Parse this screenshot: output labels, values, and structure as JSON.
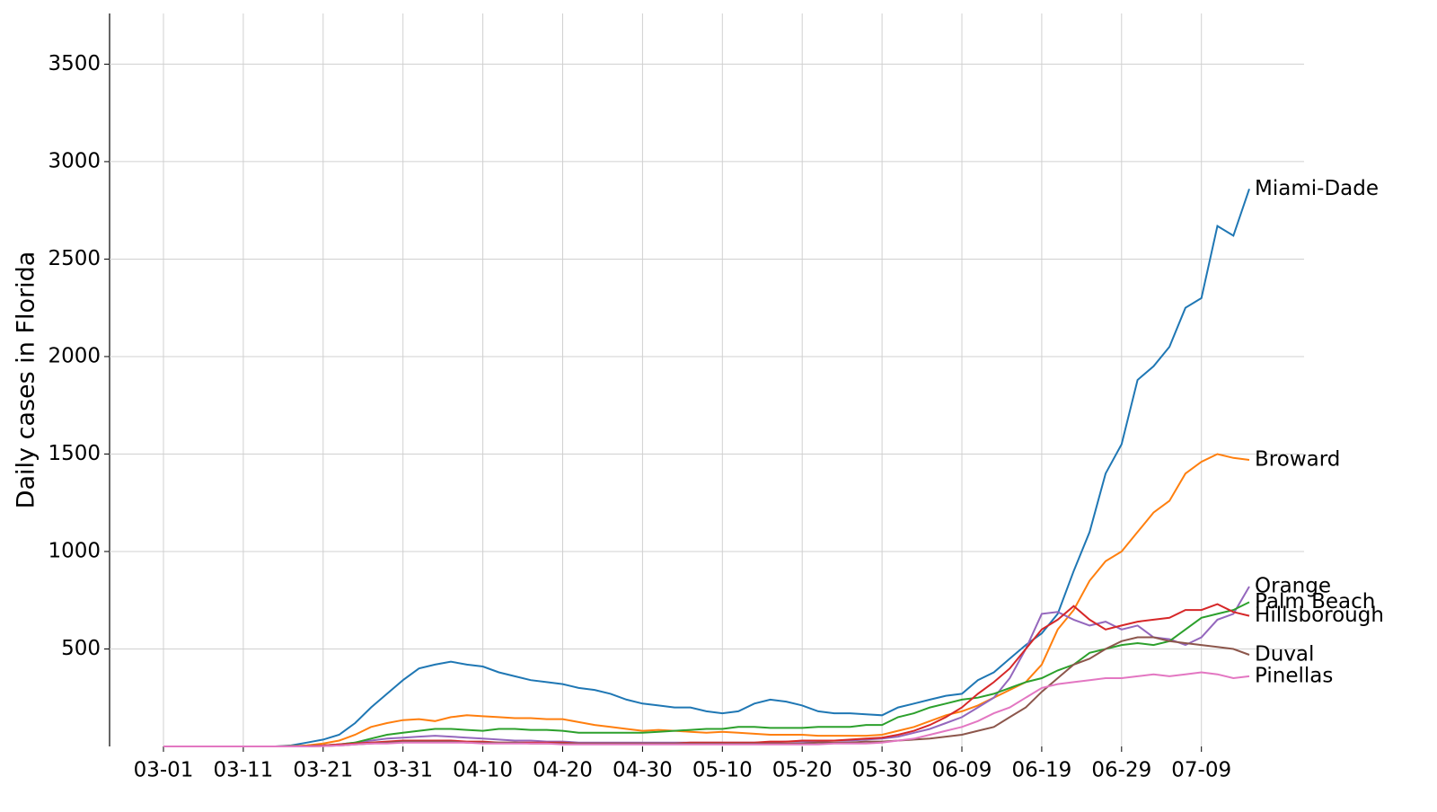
{
  "chart_data": {
    "type": "line",
    "y_label": "Daily cases in Florida",
    "x": [
      "03-01",
      "03-03",
      "03-05",
      "03-07",
      "03-09",
      "03-11",
      "03-13",
      "03-15",
      "03-17",
      "03-19",
      "03-21",
      "03-23",
      "03-25",
      "03-27",
      "03-29",
      "03-31",
      "04-02",
      "04-04",
      "04-06",
      "04-08",
      "04-10",
      "04-12",
      "04-14",
      "04-16",
      "04-18",
      "04-20",
      "04-22",
      "04-24",
      "04-26",
      "04-28",
      "04-30",
      "05-02",
      "05-04",
      "05-06",
      "05-08",
      "05-10",
      "05-12",
      "05-14",
      "05-16",
      "05-18",
      "05-20",
      "05-22",
      "05-24",
      "05-26",
      "05-28",
      "05-30",
      "06-01",
      "06-03",
      "06-05",
      "06-07",
      "06-09",
      "06-11",
      "06-13",
      "06-15",
      "06-17",
      "06-19",
      "06-21",
      "06-23",
      "06-25",
      "06-27",
      "06-29",
      "07-01",
      "07-03",
      "07-05",
      "07-07",
      "07-09",
      "07-11",
      "07-13",
      "07-15"
    ],
    "xticks": [
      "03-01",
      "03-11",
      "03-21",
      "03-31",
      "04-10",
      "04-20",
      "04-30",
      "05-10",
      "05-20",
      "05-30",
      "06-09",
      "06-19",
      "06-29",
      "07-09"
    ],
    "ylim": [
      0,
      3760
    ],
    "yticks": [
      500,
      1000,
      1500,
      2000,
      2500,
      3000,
      3500
    ],
    "grid": true,
    "series": [
      {
        "name": "Miami-Dade",
        "color": "#1f77b4",
        "values": [
          0,
          0,
          0,
          0,
          0,
          0,
          0,
          0,
          5,
          20,
          35,
          60,
          120,
          200,
          270,
          340,
          400,
          420,
          435,
          420,
          410,
          380,
          360,
          340,
          330,
          320,
          300,
          290,
          270,
          240,
          220,
          210,
          200,
          200,
          180,
          170,
          180,
          220,
          240,
          230,
          210,
          180,
          170,
          170,
          165,
          160,
          200,
          220,
          240,
          260,
          270,
          340,
          380,
          450,
          520,
          580,
          680,
          900,
          1100,
          1400,
          1550,
          1880,
          1950,
          2050,
          2250,
          2300,
          2670,
          2620,
          2860
        ]
      },
      {
        "name": "Broward",
        "color": "#ff7f0e",
        "values": [
          0,
          0,
          0,
          0,
          0,
          0,
          0,
          0,
          2,
          5,
          15,
          30,
          60,
          100,
          120,
          135,
          140,
          130,
          150,
          160,
          155,
          150,
          145,
          145,
          140,
          140,
          125,
          110,
          100,
          90,
          80,
          85,
          80,
          75,
          70,
          75,
          70,
          65,
          60,
          60,
          60,
          55,
          55,
          55,
          55,
          60,
          80,
          100,
          130,
          160,
          180,
          210,
          250,
          290,
          330,
          420,
          600,
          700,
          850,
          950,
          1000,
          1100,
          1200,
          1260,
          1400,
          1460,
          1500,
          1480,
          1470
        ]
      },
      {
        "name": "Orange",
        "color": "#9467bd",
        "values": [
          0,
          0,
          0,
          0,
          0,
          0,
          0,
          0,
          0,
          2,
          5,
          10,
          20,
          30,
          40,
          45,
          50,
          55,
          50,
          45,
          40,
          35,
          30,
          30,
          25,
          25,
          20,
          20,
          20,
          20,
          20,
          20,
          20,
          20,
          20,
          20,
          20,
          20,
          20,
          25,
          25,
          25,
          30,
          30,
          35,
          40,
          50,
          70,
          90,
          120,
          150,
          200,
          250,
          350,
          500,
          680,
          690,
          650,
          620,
          640,
          600,
          620,
          560,
          550,
          520,
          560,
          650,
          680,
          820
        ]
      },
      {
        "name": "Palm Beach",
        "color": "#2ca02c",
        "values": [
          0,
          0,
          0,
          0,
          0,
          0,
          0,
          0,
          0,
          2,
          5,
          10,
          20,
          40,
          60,
          70,
          80,
          90,
          90,
          85,
          80,
          90,
          90,
          85,
          85,
          80,
          70,
          70,
          70,
          70,
          70,
          75,
          80,
          85,
          90,
          90,
          100,
          100,
          95,
          95,
          95,
          100,
          100,
          100,
          110,
          110,
          150,
          170,
          200,
          220,
          240,
          250,
          270,
          300,
          330,
          350,
          390,
          420,
          480,
          500,
          520,
          530,
          520,
          540,
          600,
          660,
          680,
          700,
          740
        ]
      },
      {
        "name": "Hillsborough",
        "color": "#d62728",
        "values": [
          0,
          0,
          0,
          0,
          0,
          0,
          0,
          0,
          0,
          2,
          5,
          10,
          15,
          20,
          25,
          30,
          30,
          30,
          30,
          25,
          25,
          20,
          20,
          20,
          20,
          20,
          15,
          15,
          15,
          15,
          15,
          15,
          15,
          20,
          20,
          20,
          20,
          20,
          25,
          25,
          30,
          30,
          30,
          35,
          40,
          45,
          60,
          80,
          110,
          150,
          200,
          270,
          330,
          400,
          500,
          600,
          650,
          720,
          650,
          600,
          620,
          640,
          650,
          660,
          700,
          700,
          730,
          690,
          670
        ]
      },
      {
        "name": "Duval",
        "color": "#8c564b",
        "values": [
          0,
          0,
          0,
          0,
          0,
          0,
          0,
          0,
          0,
          0,
          2,
          5,
          10,
          15,
          20,
          25,
          25,
          25,
          25,
          20,
          20,
          20,
          20,
          15,
          15,
          15,
          15,
          15,
          15,
          15,
          15,
          15,
          15,
          15,
          15,
          15,
          15,
          15,
          15,
          15,
          15,
          20,
          20,
          20,
          25,
          25,
          30,
          35,
          40,
          50,
          60,
          80,
          100,
          150,
          200,
          280,
          350,
          420,
          450,
          500,
          540,
          560,
          560,
          540,
          530,
          520,
          510,
          500,
          470
        ]
      },
      {
        "name": "Pinellas",
        "color": "#e377c2",
        "values": [
          0,
          0,
          0,
          0,
          0,
          0,
          0,
          0,
          0,
          0,
          2,
          5,
          10,
          15,
          15,
          20,
          20,
          20,
          20,
          20,
          15,
          15,
          15,
          15,
          15,
          10,
          10,
          10,
          10,
          10,
          10,
          10,
          10,
          10,
          10,
          10,
          10,
          10,
          10,
          10,
          10,
          10,
          15,
          15,
          15,
          20,
          30,
          40,
          60,
          80,
          100,
          130,
          170,
          200,
          250,
          300,
          320,
          330,
          340,
          350,
          350,
          360,
          370,
          360,
          370,
          380,
          370,
          350,
          360
        ]
      }
    ]
  }
}
